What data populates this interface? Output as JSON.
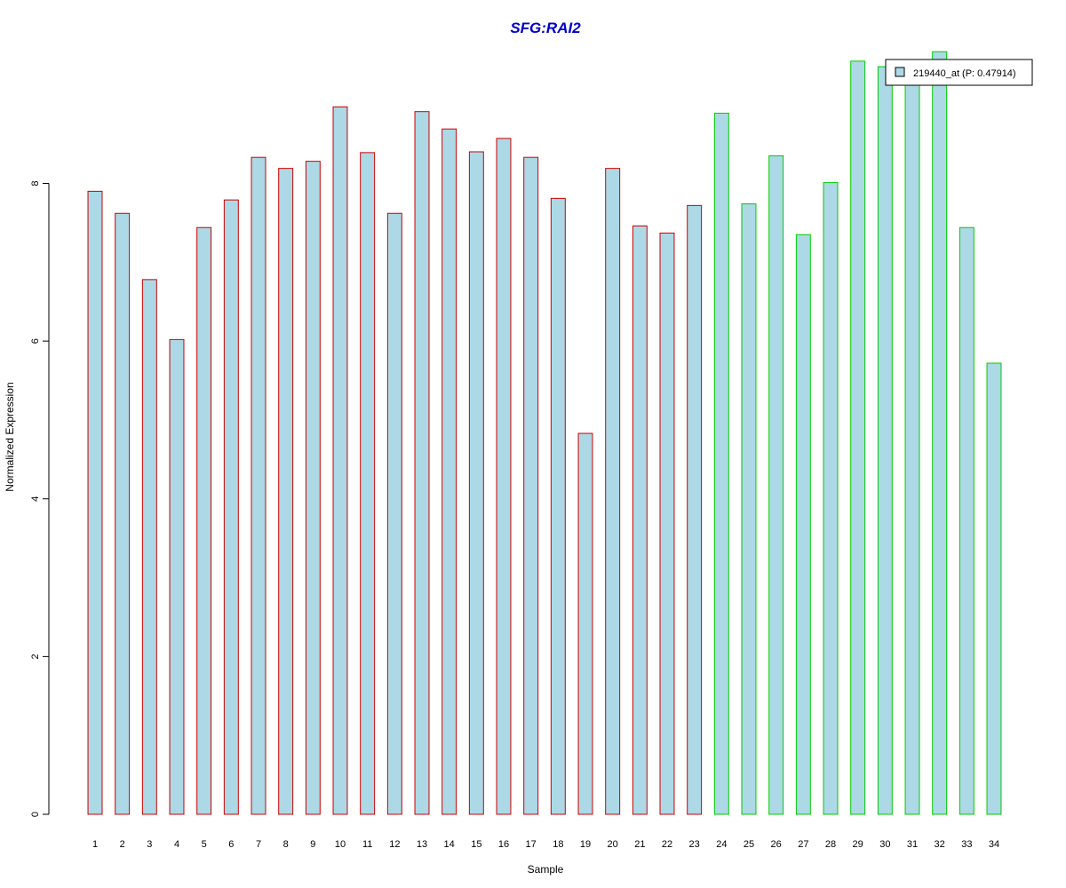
{
  "chart_data": {
    "type": "bar",
    "title": "SFG:RAI2",
    "xlabel": "Sample",
    "ylabel": "Normalized Expression",
    "ylim": [
      0,
      10
    ],
    "yticks": [
      "0",
      "2",
      "4",
      "6",
      "8"
    ],
    "categories": [
      "1",
      "2",
      "3",
      "4",
      "5",
      "6",
      "7",
      "8",
      "9",
      "10",
      "11",
      "12",
      "13",
      "14",
      "15",
      "16",
      "17",
      "18",
      "19",
      "20",
      "21",
      "22",
      "23",
      "24",
      "25",
      "26",
      "27",
      "28",
      "29",
      "30",
      "31",
      "32",
      "33",
      "34"
    ],
    "values": [
      7.9,
      7.62,
      6.78,
      6.02,
      7.44,
      7.79,
      8.33,
      8.19,
      8.28,
      8.97,
      8.39,
      7.62,
      8.91,
      8.69,
      8.4,
      8.57,
      8.33,
      7.81,
      4.83,
      8.19,
      7.46,
      7.37,
      7.72,
      8.89,
      7.74,
      8.35,
      7.35,
      8.01,
      9.55,
      9.48,
      9.32,
      9.67,
      7.44,
      5.72
    ],
    "groups": [
      1,
      1,
      1,
      1,
      1,
      1,
      1,
      1,
      1,
      1,
      1,
      1,
      1,
      1,
      1,
      1,
      1,
      1,
      1,
      1,
      1,
      1,
      1,
      2,
      2,
      2,
      2,
      2,
      2,
      2,
      2,
      2,
      2,
      2
    ],
    "legend": {
      "label": "219440_at (P: 0.47914)",
      "placement": "top-right"
    },
    "colors": {
      "bar_fill": "#add8e6",
      "group1_border": "#cc0000",
      "group2_border": "#00cc00",
      "title": "#0000cc",
      "axis": "#000000"
    }
  }
}
